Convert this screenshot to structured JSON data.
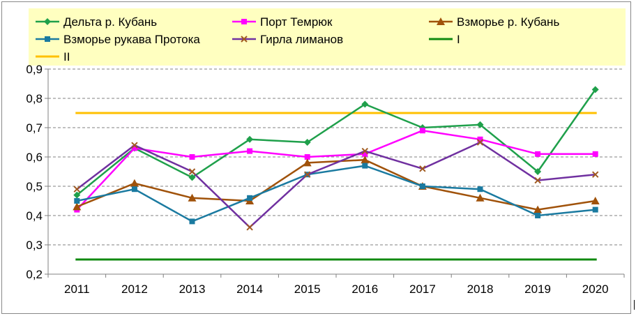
{
  "chart_data": {
    "type": "line",
    "categories": [
      "2011",
      "2012",
      "2013",
      "2014",
      "2015",
      "2016",
      "2017",
      "2018",
      "2019",
      "2020"
    ],
    "ylim": [
      0.2,
      0.9
    ],
    "yticks": [
      "0,2",
      "0,3",
      "0,4",
      "0,5",
      "0,6",
      "0,7",
      "0,8",
      "0,9"
    ],
    "ytick_values": [
      0.2,
      0.3,
      0.4,
      0.5,
      0.6,
      0.7,
      0.8,
      0.9
    ],
    "grid": "horizontal dashed",
    "legend_position": "top",
    "series": [
      {
        "name": "Дельта р. Кубань",
        "color": "#1fa04b",
        "marker": "diamond",
        "values": [
          0.47,
          0.63,
          0.53,
          0.66,
          0.65,
          0.78,
          0.7,
          0.71,
          0.55,
          0.83
        ]
      },
      {
        "name": "Порт Темрюк",
        "color": "#ff00ff",
        "marker": "square",
        "values": [
          0.42,
          0.63,
          0.6,
          0.62,
          0.6,
          0.61,
          0.69,
          0.66,
          0.61,
          0.61
        ]
      },
      {
        "name": "Взморье р. Кубань",
        "color": "#a0520a",
        "marker": "triangle",
        "values": [
          0.43,
          0.51,
          0.46,
          0.45,
          0.58,
          0.59,
          0.5,
          0.46,
          0.42,
          0.45
        ]
      },
      {
        "name": "Взморье рукава Протока",
        "color": "#1a7aa0",
        "marker": "square",
        "values": [
          0.45,
          0.49,
          0.38,
          0.46,
          0.54,
          0.57,
          0.5,
          0.49,
          0.4,
          0.42
        ]
      },
      {
        "name": "Гирла лиманов",
        "color": "#7030a0",
        "marker": "x",
        "values": [
          0.49,
          0.64,
          0.55,
          0.36,
          0.54,
          0.62,
          0.56,
          0.65,
          0.52,
          0.54
        ]
      }
    ],
    "reference_lines": [
      {
        "name": "I",
        "color": "#108a10",
        "value": 0.25
      },
      {
        "name": "II",
        "color": "#ffc000",
        "value": 0.75
      }
    ]
  },
  "legend_background": "#ffffc0"
}
